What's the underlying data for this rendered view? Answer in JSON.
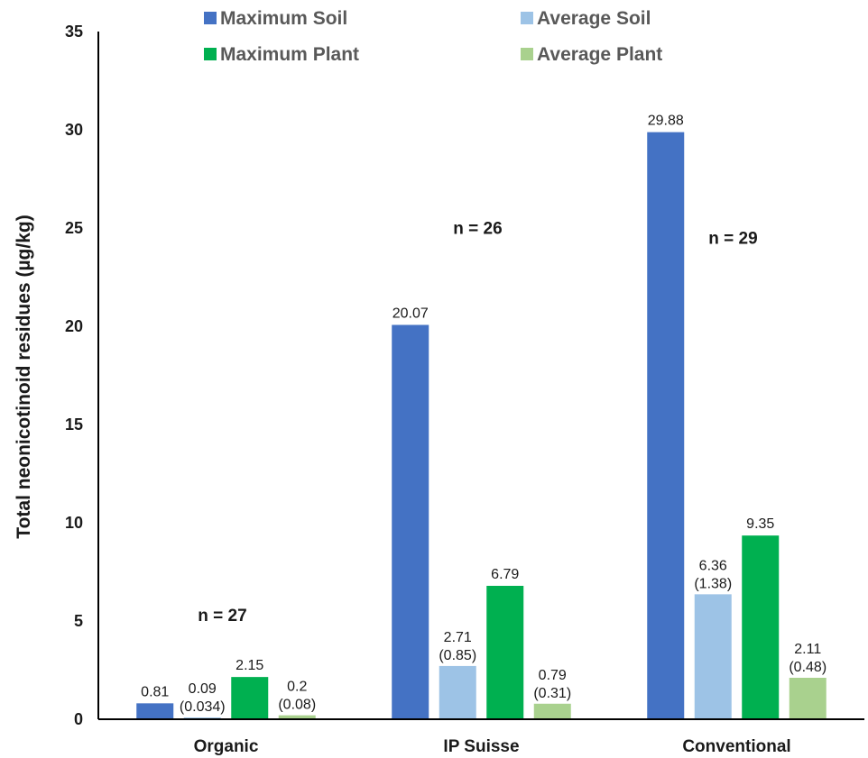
{
  "chart_data": {
    "type": "bar",
    "categories": [
      "Organic",
      "IP Suisse",
      "Conventional"
    ],
    "ylabel": "Total neonicotinoid residues (µg/kg)",
    "ylim": [
      0,
      35
    ],
    "yticks": [
      0,
      5,
      10,
      15,
      20,
      25,
      30,
      35
    ],
    "grid": false,
    "legend_position": "top",
    "series": [
      {
        "name": "Maximum Soil",
        "color": "#4472C4",
        "values": [
          0.81,
          20.07,
          29.88
        ],
        "labels": [
          "0.81",
          "20.07",
          "29.88"
        ],
        "sublabels": [
          "",
          "",
          ""
        ]
      },
      {
        "name": "Average Soil",
        "color": "#9DC3E6",
        "values": [
          0.09,
          2.71,
          6.36
        ],
        "labels": [
          "0.09",
          "2.71",
          "6.36"
        ],
        "sublabels": [
          "(0.034)",
          "(0.85)",
          "(1.38)"
        ]
      },
      {
        "name": "Maximum Plant",
        "color": "#00B050",
        "values": [
          2.15,
          6.79,
          9.35
        ],
        "labels": [
          "2.15",
          "6.79",
          "9.35"
        ],
        "sublabels": [
          "",
          "",
          ""
        ]
      },
      {
        "name": "Average Plant",
        "color": "#A9D18E",
        "values": [
          0.2,
          0.79,
          2.11
        ],
        "labels": [
          "0.2",
          "0.79",
          "2.11"
        ],
        "sublabels": [
          "(0.08)",
          "(0.31)",
          "(0.48)"
        ]
      }
    ],
    "annotations": [
      {
        "category": "Organic",
        "text": "n = 27",
        "y": 5
      },
      {
        "category": "IP Suisse",
        "text": "n = 26",
        "y": 24.7
      },
      {
        "category": "Conventional",
        "text": "n = 29",
        "y": 24.2
      }
    ]
  }
}
